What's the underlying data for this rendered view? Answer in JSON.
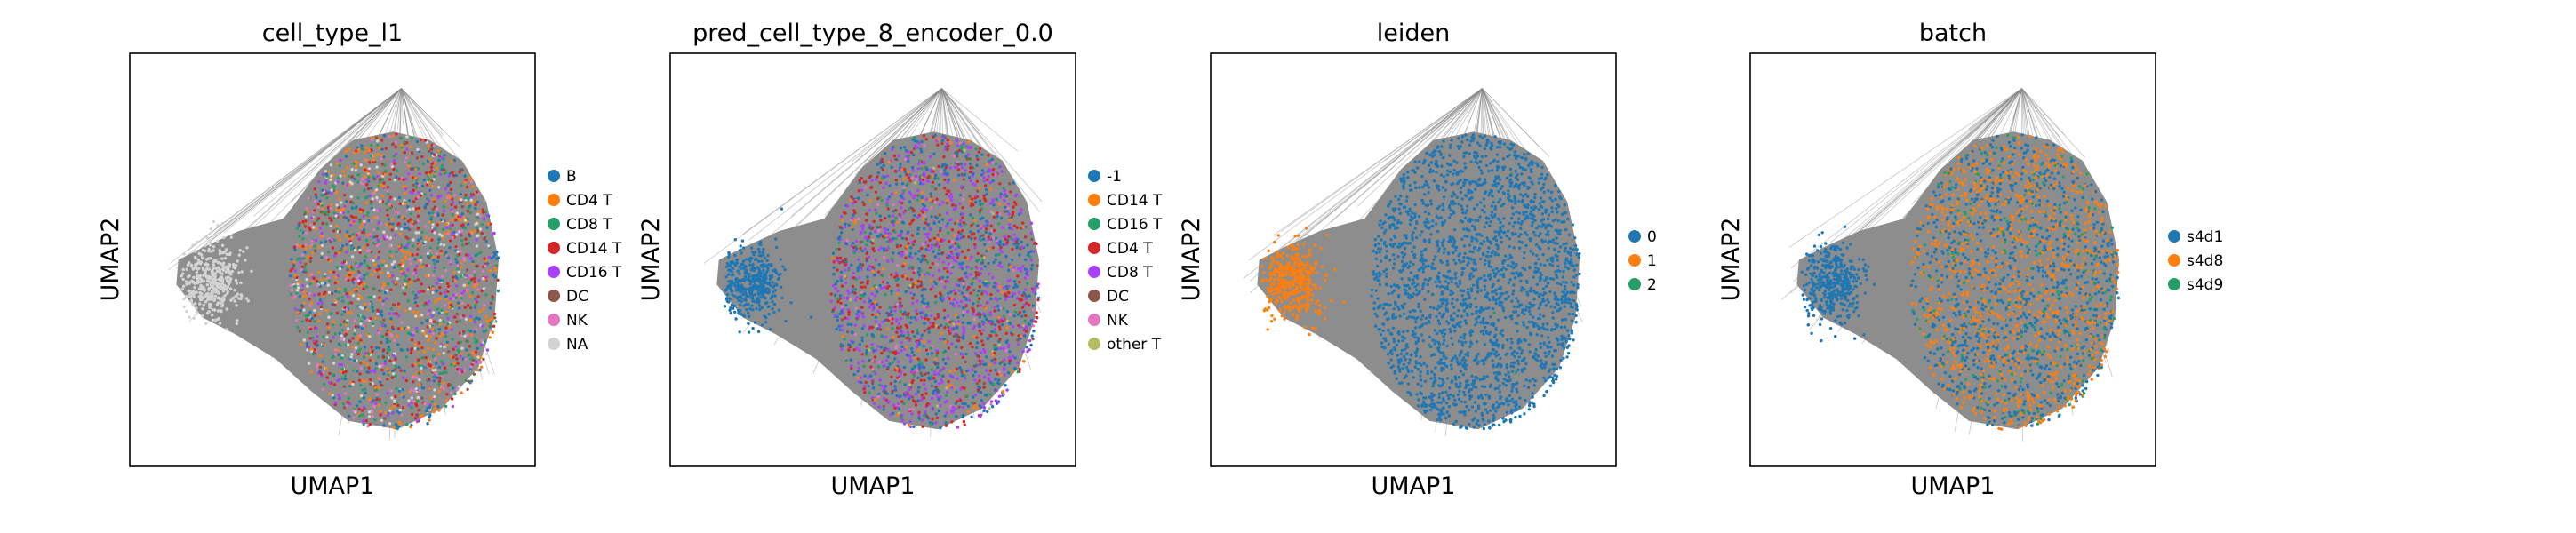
{
  "chart_data": [
    {
      "type": "scatter",
      "title": "cell_type_l1",
      "xlabel": "UMAP1",
      "ylabel": "UMAP2",
      "legend": "right",
      "grid": false,
      "categories": [
        {
          "label": "B",
          "color": "#1f77b4"
        },
        {
          "label": "CD4 T",
          "color": "#ff7f0e"
        },
        {
          "label": "CD8 T",
          "color": "#279e68"
        },
        {
          "label": "CD14 T",
          "color": "#d62728"
        },
        {
          "label": "CD16 T",
          "color": "#aa40fc"
        },
        {
          "label": "DC",
          "color": "#8c564b"
        },
        {
          "label": "NK",
          "color": "#e377c2"
        },
        {
          "label": "NA",
          "color": "#d3d3d3"
        }
      ]
    },
    {
      "type": "scatter",
      "title": "pred_cell_type_8_encoder_0.0",
      "xlabel": "UMAP1",
      "ylabel": "UMAP2",
      "legend": "right",
      "grid": false,
      "categories": [
        {
          "label": "-1",
          "color": "#1f77b4"
        },
        {
          "label": "CD14 T",
          "color": "#ff7f0e"
        },
        {
          "label": "CD16 T",
          "color": "#279e68"
        },
        {
          "label": "CD4 T",
          "color": "#d62728"
        },
        {
          "label": "CD8 T",
          "color": "#aa40fc"
        },
        {
          "label": "DC",
          "color": "#8c564b"
        },
        {
          "label": "NK",
          "color": "#e377c2"
        },
        {
          "label": "other T",
          "color": "#b5bd61"
        }
      ]
    },
    {
      "type": "scatter",
      "title": "leiden",
      "xlabel": "UMAP1",
      "ylabel": "UMAP2",
      "legend": "right",
      "grid": false,
      "categories": [
        {
          "label": "0",
          "color": "#1f77b4"
        },
        {
          "label": "1",
          "color": "#ff7f0e"
        },
        {
          "label": "2",
          "color": "#279e68"
        }
      ]
    },
    {
      "type": "scatter",
      "title": "batch",
      "xlabel": "UMAP1",
      "ylabel": "UMAP2",
      "legend": "right",
      "grid": false,
      "categories": [
        {
          "label": "s4d1",
          "color": "#1f77b4"
        },
        {
          "label": "s4d8",
          "color": "#ff7f0e"
        },
        {
          "label": "s4d9",
          "color": "#279e68"
        }
      ]
    }
  ]
}
